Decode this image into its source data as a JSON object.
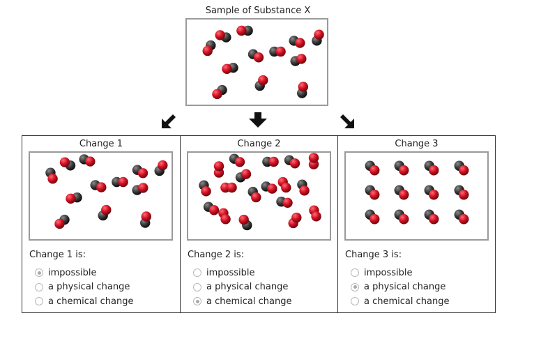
{
  "sample": {
    "title": "Sample of Substance X"
  },
  "colors": {
    "oxygen": "#d01021",
    "carbon": "#3a3a3a",
    "box_border": "#9a9a9a"
  },
  "icons": [
    "arrow-down-left-icon",
    "arrow-down-icon",
    "arrow-down-right-icon"
  ],
  "panels": [
    {
      "title": "Change 1",
      "prompt": "Change 1 is:",
      "options": [
        "impossible",
        "a physical change",
        "a chemical change"
      ],
      "selected": 0
    },
    {
      "title": "Change 2",
      "prompt": "Change 2 is:",
      "options": [
        "impossible",
        "a physical change",
        "a chemical change"
      ],
      "selected": 2
    },
    {
      "title": "Change 3",
      "prompt": "Change 3 is:",
      "options": [
        "impossible",
        "a physical change",
        "a chemical change"
      ],
      "selected": 1
    }
  ]
}
